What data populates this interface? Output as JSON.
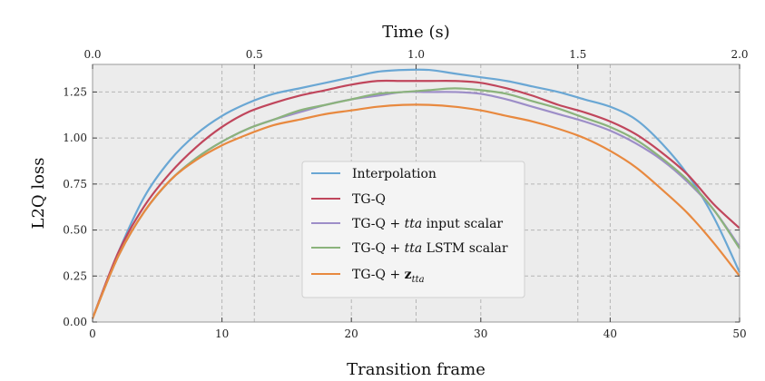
{
  "chart_data": {
    "type": "line",
    "xlabel": "Transition frame",
    "ylabel": "L2Q loss",
    "top_xlabel": "Time (s)",
    "xlim": [
      0,
      50
    ],
    "ylim": [
      0,
      1.4
    ],
    "top_xlim": [
      0,
      2.0
    ],
    "xticks": [
      0,
      10,
      20,
      30,
      40,
      50
    ],
    "yticks": [
      0.0,
      0.25,
      0.5,
      0.75,
      1.0,
      1.25
    ],
    "ytick_labels": [
      "0.00",
      "0.25",
      "0.50",
      "0.75",
      "1.00",
      "1.25"
    ],
    "top_xticks": [
      0.0,
      0.5,
      1.0,
      1.5,
      2.0
    ],
    "top_xtick_labels": [
      "0.0",
      "0.5",
      "1.0",
      "1.5",
      "2.0"
    ],
    "x": [
      0,
      2,
      4,
      6,
      8,
      10,
      12,
      14,
      16,
      18,
      20,
      22,
      24,
      26,
      28,
      30,
      32,
      34,
      36,
      38,
      40,
      42,
      44,
      46,
      48,
      50
    ],
    "series": [
      {
        "name": "Interpolation",
        "color": "#6aa7d4",
        "values": [
          0.02,
          0.38,
          0.68,
          0.88,
          1.02,
          1.12,
          1.19,
          1.24,
          1.27,
          1.3,
          1.33,
          1.36,
          1.37,
          1.37,
          1.35,
          1.33,
          1.31,
          1.28,
          1.25,
          1.21,
          1.17,
          1.1,
          0.97,
          0.8,
          0.57,
          0.27
        ]
      },
      {
        "name": "TG-Q",
        "color": "#c0465c",
        "values": [
          0.02,
          0.38,
          0.63,
          0.81,
          0.95,
          1.06,
          1.14,
          1.19,
          1.23,
          1.26,
          1.29,
          1.31,
          1.31,
          1.31,
          1.31,
          1.3,
          1.27,
          1.23,
          1.18,
          1.14,
          1.09,
          1.02,
          0.92,
          0.8,
          0.64,
          0.51
        ]
      },
      {
        "name": "TG-Q + tta input scalar",
        "color": "#9d8ec8",
        "values": [
          0.02,
          0.36,
          0.6,
          0.77,
          0.89,
          0.98,
          1.05,
          1.1,
          1.14,
          1.18,
          1.21,
          1.23,
          1.25,
          1.25,
          1.25,
          1.24,
          1.21,
          1.17,
          1.13,
          1.09,
          1.04,
          0.97,
          0.88,
          0.76,
          0.61,
          0.41
        ]
      },
      {
        "name": "TG-Q + tta LSTM scalar",
        "color": "#8bb37c",
        "values": [
          0.02,
          0.36,
          0.6,
          0.77,
          0.89,
          0.98,
          1.05,
          1.1,
          1.15,
          1.18,
          1.21,
          1.24,
          1.25,
          1.26,
          1.27,
          1.26,
          1.24,
          1.2,
          1.16,
          1.11,
          1.06,
          0.99,
          0.89,
          0.77,
          0.61,
          0.4
        ]
      },
      {
        "name": "TG-Q + z_tta",
        "color": "#e8893f",
        "values": [
          0.02,
          0.36,
          0.6,
          0.77,
          0.88,
          0.96,
          1.02,
          1.07,
          1.1,
          1.13,
          1.15,
          1.17,
          1.18,
          1.18,
          1.17,
          1.15,
          1.12,
          1.09,
          1.05,
          1.0,
          0.93,
          0.84,
          0.72,
          0.59,
          0.43,
          0.25
        ]
      }
    ],
    "legend_tta": "tta",
    "legend_input_scalar": " input scalar",
    "legend_lstm_scalar": " LSTM scalar",
    "legend_prefix": "TG-Q + ",
    "legend_z": "z",
    "grid": true,
    "legend": "center"
  }
}
